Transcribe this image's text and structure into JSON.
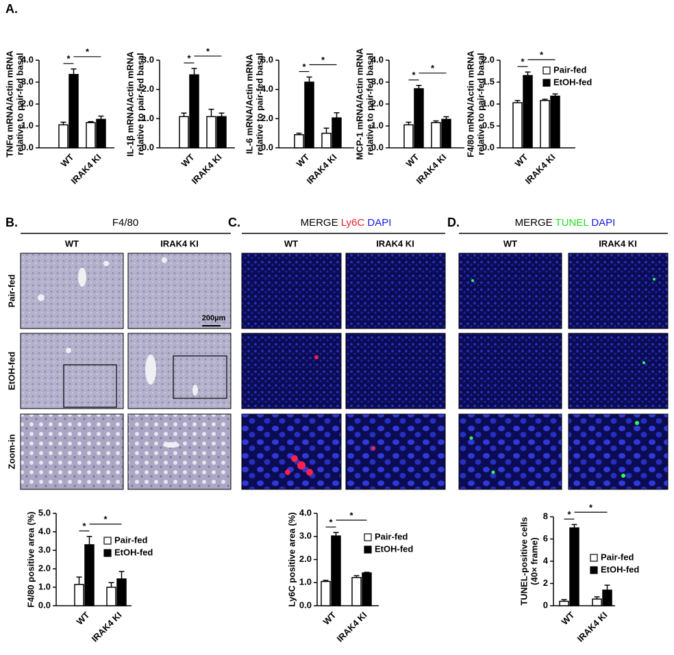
{
  "panels": {
    "A": {
      "label": "A."
    },
    "B": {
      "label": "B.",
      "title": "F4/80",
      "columns": [
        "WT",
        "IRAK4 KI"
      ],
      "rows": [
        "Pair-fed",
        "EtOH-fed",
        "Zoom-in"
      ],
      "scale": "200µm"
    },
    "C": {
      "label": "C.",
      "title": [
        "MERGE",
        "Ly6C",
        "DAPI"
      ],
      "columns": [
        "WT",
        "IRAK4 KI"
      ]
    },
    "D": {
      "label": "D.",
      "title": [
        "MERGE",
        "TUNEL",
        "DAPI"
      ],
      "columns": [
        "WT",
        "IRAK4 KI"
      ]
    }
  },
  "chart_data": [
    {
      "type": "bar",
      "ylabel": [
        "TNFα mRNA/Actin mRNA",
        "relative to pair-fed basal"
      ],
      "categories": [
        "WT",
        "IRAK4 KI"
      ],
      "series": [
        {
          "name": "Pair-fed",
          "color": "#ffffff",
          "values": [
            1.05,
            1.15
          ],
          "errors": [
            0.12,
            0.05
          ]
        },
        {
          "name": "EtOH-fed",
          "color": "#000000",
          "values": [
            3.35,
            1.3
          ],
          "errors": [
            0.25,
            0.15
          ]
        }
      ],
      "ylim": [
        0,
        4
      ],
      "yticks": [
        {
          "value": 0,
          "label": "0.0"
        },
        {
          "value": 1,
          "label": "1.0"
        },
        {
          "value": 2,
          "label": "2.0"
        },
        {
          "value": 3,
          "label": "3.0"
        },
        {
          "value": 4,
          "label": "4.0"
        }
      ],
      "annotations": [
        "*",
        "*"
      ]
    },
    {
      "type": "bar",
      "ylabel": [
        "IL-1β mRNA/Actin mRNA",
        "relative to pair-fed basal"
      ],
      "categories": [
        "WT",
        "IRAK4 KI"
      ],
      "series": [
        {
          "name": "Pair-fed",
          "color": "#ffffff",
          "values": [
            1.07,
            1.07
          ],
          "errors": [
            0.12,
            0.25
          ]
        },
        {
          "name": "EtOH-fed",
          "color": "#000000",
          "values": [
            2.5,
            1.07
          ],
          "errors": [
            0.22,
            0.12
          ]
        }
      ],
      "ylim": [
        0,
        3
      ],
      "yticks": [
        {
          "value": 0,
          "label": "0.0"
        },
        {
          "value": 1,
          "label": "1.0"
        },
        {
          "value": 2,
          "label": "2.0"
        },
        {
          "value": 3,
          "label": "3.0"
        }
      ],
      "annotations": [
        "*",
        "*"
      ]
    },
    {
      "type": "bar",
      "ylabel": [
        "IL-6 mRNA/Actin mRNA",
        "relative to pair-fed basal"
      ],
      "categories": [
        "WT",
        "IRAK4 KI"
      ],
      "series": [
        {
          "name": "Pair-fed",
          "color": "#ffffff",
          "values": [
            0.9,
            1.0
          ],
          "errors": [
            0.1,
            0.35
          ]
        },
        {
          "name": "EtOH-fed",
          "color": "#000000",
          "values": [
            4.5,
            2.05
          ],
          "errors": [
            0.35,
            0.35
          ]
        }
      ],
      "ylim": [
        0,
        6
      ],
      "yticks": [
        {
          "value": 0,
          "label": "0.0"
        },
        {
          "value": 2,
          "label": "2.0"
        },
        {
          "value": 4,
          "label": "4.0"
        },
        {
          "value": 6,
          "label": "6.0"
        }
      ],
      "annotations": [
        "*",
        "*"
      ]
    },
    {
      "type": "bar",
      "ylabel": [
        "MCP-1 mRNA/Actin mRNA",
        "relative to pair-fed basal"
      ],
      "categories": [
        "WT",
        "IRAK4 KI"
      ],
      "series": [
        {
          "name": "Pair-fed",
          "color": "#ffffff",
          "values": [
            1.05,
            1.15
          ],
          "errors": [
            0.12,
            0.08
          ]
        },
        {
          "name": "EtOH-fed",
          "color": "#000000",
          "values": [
            2.7,
            1.3
          ],
          "errors": [
            0.15,
            0.12
          ]
        }
      ],
      "ylim": [
        0,
        4
      ],
      "yticks": [
        {
          "value": 0,
          "label": "0.0"
        },
        {
          "value": 1,
          "label": "1.0"
        },
        {
          "value": 2,
          "label": "2.0"
        },
        {
          "value": 3,
          "label": "3.0"
        },
        {
          "value": 4,
          "label": "4.0"
        }
      ],
      "annotations": [
        "*",
        "*"
      ]
    },
    {
      "type": "bar",
      "ylabel": [
        "F4/80 mRNA/Actin mRNA",
        "relative to pair-fed basal"
      ],
      "categories": [
        "WT",
        "IRAK4 KI"
      ],
      "series": [
        {
          "name": "Pair-fed",
          "color": "#ffffff",
          "values": [
            1.03,
            1.08
          ],
          "errors": [
            0.05,
            0.03
          ]
        },
        {
          "name": "EtOH-fed",
          "color": "#000000",
          "values": [
            1.65,
            1.18
          ],
          "errors": [
            0.08,
            0.05
          ]
        }
      ],
      "ylim": [
        0,
        2
      ],
      "yticks": [
        {
          "value": 0,
          "label": "0.0"
        },
        {
          "value": 0.5,
          "label": "0.5"
        },
        {
          "value": 1,
          "label": "1.0"
        },
        {
          "value": 1.5,
          "label": "1.5"
        },
        {
          "value": 2,
          "label": "2.0"
        }
      ],
      "annotations": [
        "*",
        "*"
      ],
      "legend": "upper right"
    },
    {
      "type": "bar",
      "ylabel": [
        "F4/80 positive area (%)"
      ],
      "categories": [
        "WT",
        "IRAK4 KI"
      ],
      "series": [
        {
          "name": "Pair-fed",
          "color": "#ffffff",
          "values": [
            1.15,
            1.0
          ],
          "errors": [
            0.4,
            0.25
          ]
        },
        {
          "name": "EtOH-fed",
          "color": "#000000",
          "values": [
            3.3,
            1.45
          ],
          "errors": [
            0.45,
            0.4
          ]
        }
      ],
      "ylim": [
        0,
        5
      ],
      "yticks": [
        {
          "value": 0,
          "label": "0.0"
        },
        {
          "value": 1,
          "label": "1.0"
        },
        {
          "value": 2,
          "label": "2.0"
        },
        {
          "value": 3,
          "label": "3.0"
        },
        {
          "value": 4,
          "label": "4.0"
        },
        {
          "value": 5,
          "label": "5.0"
        }
      ],
      "annotations": [
        "*",
        "*"
      ],
      "legend": "upper right"
    },
    {
      "type": "bar",
      "ylabel": [
        "Ly6C positive area (%)"
      ],
      "categories": [
        "WT",
        "IRAK4 KI"
      ],
      "series": [
        {
          "name": "Pair-fed",
          "color": "#ffffff",
          "values": [
            1.05,
            1.22
          ],
          "errors": [
            0.05,
            0.08
          ]
        },
        {
          "name": "EtOH-fed",
          "color": "#000000",
          "values": [
            3.02,
            1.42
          ],
          "errors": [
            0.15,
            0.03
          ]
        }
      ],
      "ylim": [
        0,
        4
      ],
      "yticks": [
        {
          "value": 0,
          "label": "0.0"
        },
        {
          "value": 1,
          "label": "1.0"
        },
        {
          "value": 2,
          "label": "2.0"
        },
        {
          "value": 3,
          "label": "3.0"
        },
        {
          "value": 4,
          "label": "4.0"
        }
      ],
      "annotations": [
        "*",
        "*"
      ],
      "legend": "upper right"
    },
    {
      "type": "bar",
      "ylabel": [
        "TUNEL-positive cells",
        "(40× frame)"
      ],
      "categories": [
        "WT",
        "IRAK4 KI"
      ],
      "series": [
        {
          "name": "Pair-fed",
          "color": "#ffffff",
          "values": [
            0.4,
            0.6
          ],
          "errors": [
            0.15,
            0.2
          ]
        },
        {
          "name": "EtOH-fed",
          "color": "#000000",
          "values": [
            7.0,
            1.4
          ],
          "errors": [
            0.3,
            0.45
          ]
        }
      ],
      "ylim": [
        0,
        8
      ],
      "yticks": [
        0,
        2,
        4,
        6,
        8
      ],
      "annotations": [
        "*",
        "*"
      ],
      "legend": "right"
    }
  ]
}
